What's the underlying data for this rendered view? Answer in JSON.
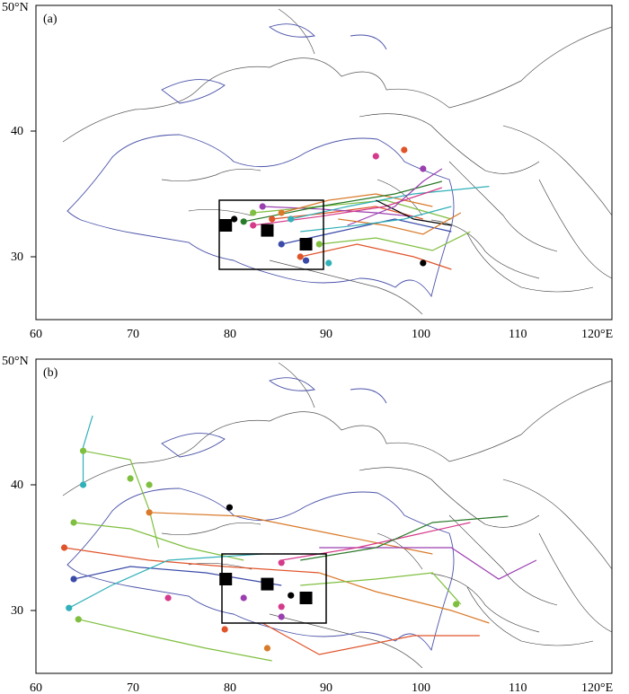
{
  "colors": {
    "plateau_outline": "#4a52a8",
    "track_palette": [
      "#7fbf3f",
      "#e0542a",
      "#9b3fb0",
      "#d97a2a",
      "#30b0b8",
      "#d63a8a",
      "#3a4aa8",
      "#2a7a2a",
      "#000000"
    ]
  },
  "panels": [
    {
      "id": "a",
      "tag": "(a)",
      "x_ticks": [
        "60",
        "70",
        "80",
        "90",
        "100",
        "110",
        "120°E"
      ],
      "y_ticks": [
        "50°N",
        "40",
        "30"
      ]
    },
    {
      "id": "b",
      "tag": "(b)",
      "x_ticks": [
        "60",
        "70",
        "80",
        "90",
        "100",
        "110",
        "120°E"
      ],
      "y_ticks": [
        "50°N",
        "40",
        "30"
      ]
    }
  ],
  "stations": [
    {
      "lon": 80.1,
      "lat": 32.5
    },
    {
      "lon": 84.5,
      "lat": 32.1
    },
    {
      "lon": 88.6,
      "lat": 31.0
    }
  ],
  "source_region": {
    "lon_min": 79,
    "lon_max": 89.5,
    "lat_min": 29,
    "lat_max": 34.5
  },
  "tracks_a": [
    {
      "color": "#7fbf3f",
      "pts": [
        [
          83,
          33.5
        ],
        [
          90,
          34
        ],
        [
          97,
          34.5
        ],
        [
          104,
          33
        ]
      ]
    },
    {
      "color": "#e0542a",
      "pts": [
        [
          85,
          33
        ],
        [
          91,
          33.5
        ],
        [
          96,
          34
        ],
        [
          101,
          33
        ]
      ]
    },
    {
      "color": "#9b3fb0",
      "pts": [
        [
          84,
          34
        ],
        [
          90,
          33.8
        ],
        [
          96,
          33.5
        ],
        [
          100,
          33.2
        ]
      ]
    },
    {
      "color": "#d97a2a",
      "pts": [
        [
          86,
          33.5
        ],
        [
          91,
          34.5
        ],
        [
          96,
          35
        ],
        [
          102,
          34
        ]
      ]
    },
    {
      "color": "#30b0b8",
      "pts": [
        [
          87,
          33
        ],
        [
          93,
          34
        ],
        [
          100,
          35
        ],
        [
          108,
          35.6
        ]
      ]
    },
    {
      "color": "#d63a8a",
      "pts": [
        [
          83,
          32.5
        ],
        [
          90,
          33.2
        ],
        [
          97,
          34
        ],
        [
          103,
          35.5
        ]
      ]
    },
    {
      "color": "#3a4aa8",
      "pts": [
        [
          86,
          31
        ],
        [
          92,
          32
        ],
        [
          98,
          33
        ],
        [
          104,
          32
        ]
      ]
    },
    {
      "color": "#2a7a2a",
      "pts": [
        [
          82,
          32.8
        ],
        [
          90,
          34
        ],
        [
          98,
          35
        ],
        [
          103,
          36
        ]
      ]
    },
    {
      "color": "#000000",
      "pts": [
        [
          96,
          34.5
        ],
        [
          100,
          33
        ],
        [
          104,
          32.5
        ]
      ]
    },
    {
      "color": "#7fbf3f",
      "pts": [
        [
          90,
          31
        ],
        [
          96,
          31.5
        ],
        [
          102,
          30.5
        ],
        [
          106,
          32
        ]
      ]
    },
    {
      "color": "#e0542a",
      "pts": [
        [
          88,
          30
        ],
        [
          94,
          31
        ],
        [
          100,
          30
        ],
        [
          104,
          29
        ]
      ]
    },
    {
      "color": "#9b3fb0",
      "pts": [
        [
          93,
          32.5
        ],
        [
          98,
          34
        ],
        [
          101,
          36
        ],
        [
          103,
          37
        ]
      ]
    },
    {
      "color": "#d97a2a",
      "pts": [
        [
          92,
          33
        ],
        [
          97,
          32.5
        ],
        [
          101,
          31.8
        ],
        [
          105,
          33.5
        ]
      ]
    },
    {
      "color": "#30b0b8",
      "pts": [
        [
          88,
          32
        ],
        [
          94,
          32.5
        ],
        [
          99,
          33
        ],
        [
          104,
          34
        ]
      ]
    }
  ],
  "markers_a": [
    {
      "color": "#7fbf3f",
      "lon": 83,
      "lat": 33.5
    },
    {
      "color": "#e0542a",
      "lon": 85,
      "lat": 33
    },
    {
      "color": "#9b3fb0",
      "lon": 84,
      "lat": 34
    },
    {
      "color": "#d97a2a",
      "lon": 86,
      "lat": 33.5
    },
    {
      "color": "#30b0b8",
      "lon": 87,
      "lat": 33
    },
    {
      "color": "#d63a8a",
      "lon": 83,
      "lat": 32.5
    },
    {
      "color": "#3a4aa8",
      "lon": 86,
      "lat": 31
    },
    {
      "color": "#2a7a2a",
      "lon": 82,
      "lat": 32.8
    },
    {
      "color": "#000000",
      "lon": 81,
      "lat": 33
    },
    {
      "color": "#7fbf3f",
      "lon": 90,
      "lat": 31
    },
    {
      "color": "#e0542a",
      "lon": 88,
      "lat": 30
    },
    {
      "color": "#3a4aa8",
      "lon": 88.6,
      "lat": 29.7
    },
    {
      "color": "#d63a8a",
      "lon": 96,
      "lat": 38
    },
    {
      "color": "#e0542a",
      "lon": 99,
      "lat": 38.5
    },
    {
      "color": "#9b3fb0",
      "lon": 101,
      "lat": 37
    },
    {
      "color": "#30b0b8",
      "lon": 91,
      "lat": 29.5
    },
    {
      "color": "#000000",
      "lon": 101,
      "lat": 29.5
    }
  ],
  "tracks_b": [
    {
      "color": "#30b0b8",
      "pts": [
        [
          66,
          45.5
        ],
        [
          65,
          43
        ],
        [
          65,
          40
        ]
      ]
    },
    {
      "color": "#7fbf3f",
      "pts": [
        [
          65,
          42.7
        ],
        [
          70,
          42
        ],
        [
          72,
          38
        ],
        [
          73,
          35
        ]
      ]
    },
    {
      "color": "#7fbf3f",
      "pts": [
        [
          64,
          37
        ],
        [
          70,
          36.5
        ],
        [
          76,
          35
        ],
        [
          82,
          34
        ]
      ]
    },
    {
      "color": "#e0542a",
      "pts": [
        [
          63,
          35
        ],
        [
          72,
          34
        ],
        [
          80,
          33.5
        ],
        [
          90,
          33
        ]
      ]
    },
    {
      "color": "#3a4aa8",
      "pts": [
        [
          64,
          32.5
        ],
        [
          70,
          33.5
        ],
        [
          78,
          33
        ],
        [
          86,
          32
        ]
      ]
    },
    {
      "color": "#30b0b8",
      "pts": [
        [
          63.5,
          30.2
        ],
        [
          68,
          32
        ],
        [
          74,
          34
        ],
        [
          84,
          34.5
        ]
      ]
    },
    {
      "color": "#7fbf3f",
      "pts": [
        [
          64.5,
          29.3
        ],
        [
          72,
          28
        ],
        [
          78,
          27
        ],
        [
          85,
          26
        ]
      ]
    },
    {
      "color": "#d97a2a",
      "pts": [
        [
          72,
          37.8
        ],
        [
          82,
          37.5
        ],
        [
          92,
          36
        ],
        [
          102,
          34.5
        ]
      ]
    },
    {
      "color": "#9b3fb0",
      "pts": [
        [
          90,
          35
        ],
        [
          98,
          35
        ],
        [
          104,
          35
        ],
        [
          109,
          32.5
        ],
        [
          113,
          34
        ]
      ]
    },
    {
      "color": "#d63a8a",
      "pts": [
        [
          86,
          34
        ],
        [
          94,
          35
        ],
        [
          100,
          36
        ],
        [
          106,
          37
        ]
      ]
    },
    {
      "color": "#e0542a",
      "pts": [
        [
          84,
          29
        ],
        [
          90,
          26.5
        ],
        [
          100,
          28
        ],
        [
          107,
          28
        ]
      ]
    },
    {
      "color": "#2a7a2a",
      "pts": [
        [
          88,
          34
        ],
        [
          96,
          35
        ],
        [
          102,
          37
        ],
        [
          110,
          37.5
        ]
      ]
    },
    {
      "color": "#d97a2a",
      "pts": [
        [
          90,
          33
        ],
        [
          96,
          31.5
        ],
        [
          104,
          30
        ],
        [
          108,
          29
        ]
      ]
    },
    {
      "color": "#7fbf3f",
      "pts": [
        [
          88,
          32
        ],
        [
          96,
          32.5
        ],
        [
          102,
          33
        ],
        [
          105,
          30.5
        ]
      ]
    }
  ],
  "markers_b": [
    {
      "color": "#30b0b8",
      "lon": 65,
      "lat": 40
    },
    {
      "color": "#7fbf3f",
      "lon": 65,
      "lat": 42.7
    },
    {
      "color": "#7fbf3f",
      "lon": 64,
      "lat": 37
    },
    {
      "color": "#e0542a",
      "lon": 63,
      "lat": 35
    },
    {
      "color": "#3a4aa8",
      "lon": 64,
      "lat": 32.5
    },
    {
      "color": "#30b0b8",
      "lon": 63.5,
      "lat": 30.2
    },
    {
      "color": "#7fbf3f",
      "lon": 64.5,
      "lat": 29.3
    },
    {
      "color": "#d97a2a",
      "lon": 72,
      "lat": 37.8
    },
    {
      "color": "#000000",
      "lon": 80.5,
      "lat": 38.2
    },
    {
      "color": "#d63a8a",
      "lon": 74,
      "lat": 31
    },
    {
      "color": "#7fbf3f",
      "lon": 70,
      "lat": 40.5
    },
    {
      "color": "#7fbf3f",
      "lon": 72,
      "lat": 40
    },
    {
      "color": "#d63a8a",
      "lon": 86,
      "lat": 33.8
    },
    {
      "color": "#9b3fb0",
      "lon": 82,
      "lat": 31
    },
    {
      "color": "#000000",
      "lon": 87,
      "lat": 31.2
    },
    {
      "color": "#d97a2a",
      "lon": 84.5,
      "lat": 27
    },
    {
      "color": "#7fbf3f",
      "lon": 104.5,
      "lat": 30.5
    },
    {
      "color": "#e0542a",
      "lon": 80,
      "lat": 28.5
    },
    {
      "color": "#9b3fb0",
      "lon": 86,
      "lat": 29.5
    },
    {
      "color": "#d63a8a",
      "lon": 86,
      "lat": 30.3
    }
  ]
}
